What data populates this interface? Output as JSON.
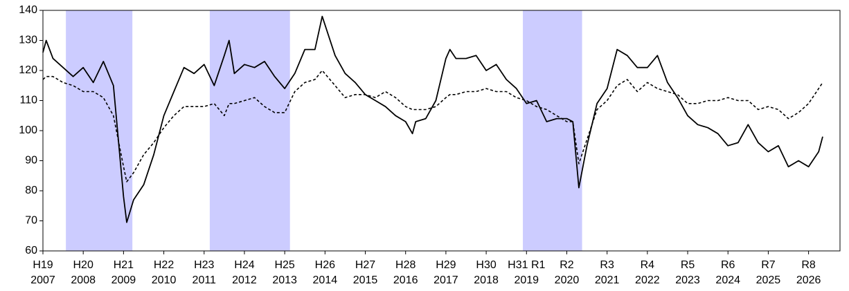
{
  "chart_data": {
    "type": "line",
    "x": [
      2007,
      2007.08,
      2007.25,
      2007.5,
      2007.75,
      2008,
      2008.25,
      2008.5,
      2008.75,
      2009,
      2009.08,
      2009.25,
      2009.5,
      2009.75,
      2010,
      2010.25,
      2010.5,
      2010.75,
      2011,
      2011.25,
      2011.5,
      2011.62,
      2011.75,
      2012,
      2012.25,
      2012.5,
      2012.75,
      2013,
      2013.25,
      2013.5,
      2013.75,
      2013.93,
      2014.25,
      2014.5,
      2014.75,
      2015,
      2015.25,
      2015.5,
      2015.75,
      2016,
      2016.17,
      2016.25,
      2016.5,
      2016.75,
      2017,
      2017.1,
      2017.25,
      2017.5,
      2017.75,
      2018,
      2018.25,
      2018.5,
      2018.75,
      2019,
      2019.25,
      2019.5,
      2019.75,
      2020,
      2020.15,
      2020.3,
      2020.5,
      2020.75,
      2021,
      2021.25,
      2021.5,
      2021.75,
      2022,
      2022.25,
      2022.5,
      2022.75,
      2023,
      2023.25,
      2023.5,
      2023.75,
      2024,
      2024.25,
      2024.5,
      2024.75,
      2025,
      2025.25,
      2025.5,
      2025.75,
      2026,
      2026.25,
      2026.35
    ],
    "series": [
      {
        "color": "#000000",
        "line_style": "solid",
        "values": [
          126,
          130,
          124,
          121,
          118,
          121,
          116,
          123,
          115,
          78,
          69.5,
          77,
          82,
          92,
          105,
          113,
          121,
          119,
          122,
          115,
          125,
          130,
          119,
          122,
          121,
          123,
          118,
          114,
          119,
          127,
          127,
          138,
          125,
          119,
          116,
          112,
          110,
          108,
          105,
          103,
          99,
          103,
          104,
          110,
          124,
          127,
          124,
          124,
          125,
          120,
          122,
          117,
          114,
          109,
          110,
          103,
          104,
          104,
          103,
          81,
          95,
          109,
          114,
          127,
          125,
          121,
          121,
          125,
          116,
          111,
          105,
          102,
          101,
          99,
          95,
          96,
          102,
          96,
          93,
          95,
          88,
          90,
          88,
          93,
          98
        ]
      },
      {
        "color": "#000000",
        "line_style": "dashed",
        "values": [
          117,
          118,
          118,
          116,
          115,
          113,
          113,
          111,
          105,
          88,
          83,
          86,
          92,
          96,
          101,
          105,
          108,
          108,
          108,
          109,
          105,
          109,
          109,
          110,
          111,
          108,
          106,
          106,
          113,
          116,
          117,
          120,
          115,
          111,
          112,
          112,
          111,
          113,
          111,
          108,
          107,
          107,
          107,
          108,
          111,
          112,
          112,
          113,
          113,
          114,
          113,
          113,
          111,
          110,
          108,
          107,
          105,
          103,
          103,
          89,
          97,
          107,
          110,
          115,
          117,
          113,
          116,
          114,
          113,
          112,
          109,
          109,
          110,
          110,
          111,
          110,
          110,
          107,
          108,
          107,
          104,
          106,
          109,
          114,
          116
        ]
      }
    ],
    "shaded": [
      [
        2007.57,
        2009.22
      ],
      [
        2011.14,
        2013.13
      ],
      [
        2018.91,
        2020.38
      ]
    ],
    "shade_color": "#ccccff",
    "xlim": [
      2007,
      2026.78
    ],
    "xticks": [
      {
        "value": 2007,
        "label": "H19\n2007"
      },
      {
        "value": 2008,
        "label": "H20\n2008"
      },
      {
        "value": 2009,
        "label": "H21\n2009"
      },
      {
        "value": 2010,
        "label": "H22\n2010"
      },
      {
        "value": 2011,
        "label": "H23\n2011"
      },
      {
        "value": 2012,
        "label": "H24\n2012"
      },
      {
        "value": 2013,
        "label": "H25\n2013"
      },
      {
        "value": 2014,
        "label": "H26\n2014"
      },
      {
        "value": 2015,
        "label": "H27\n2015"
      },
      {
        "value": 2016,
        "label": "H28\n2016"
      },
      {
        "value": 2017,
        "label": "H29\n2017"
      },
      {
        "value": 2018,
        "label": "H30\n2018"
      },
      {
        "value": 2019,
        "label": "H31   R1\n2019"
      },
      {
        "value": 2020,
        "label": "R2\n2020"
      },
      {
        "value": 2021,
        "label": "R3\n2021"
      },
      {
        "value": 2022,
        "label": "R4\n2022"
      },
      {
        "value": 2023,
        "label": "R5\n2023"
      },
      {
        "value": 2024,
        "label": "R6\n2024"
      },
      {
        "value": 2025,
        "label": "R7\n2025"
      },
      {
        "value": 2026,
        "label": "R8\n2026"
      }
    ],
    "ylim": [
      60,
      140
    ],
    "yticks": [
      60,
      70,
      80,
      90,
      100,
      110,
      120,
      130,
      140
    ],
    "grid": false
  }
}
